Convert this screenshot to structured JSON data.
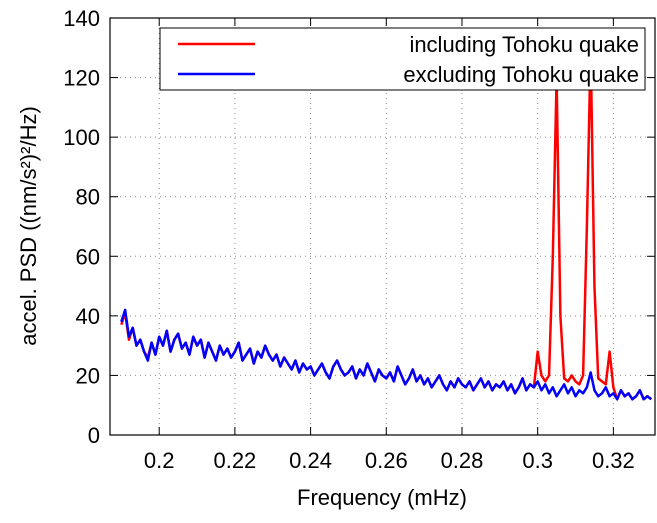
{
  "chart_data": {
    "type": "line",
    "xlabel": "Frequency (mHz)",
    "ylabel": "accel. PSD ((nm/s²)²/Hz)",
    "xlim": [
      0.187,
      0.331
    ],
    "ylim": [
      0,
      140
    ],
    "xticks": [
      0.2,
      0.22,
      0.24,
      0.26,
      0.28,
      0.3,
      0.32
    ],
    "yticks": [
      0,
      20,
      40,
      60,
      80,
      100,
      120,
      140
    ],
    "grid": true,
    "legend": "upper right",
    "x": [
      0.19,
      0.191,
      0.192,
      0.193,
      0.194,
      0.195,
      0.196,
      0.197,
      0.198,
      0.199,
      0.2,
      0.201,
      0.202,
      0.203,
      0.204,
      0.205,
      0.206,
      0.207,
      0.208,
      0.209,
      0.21,
      0.211,
      0.212,
      0.213,
      0.214,
      0.215,
      0.216,
      0.217,
      0.218,
      0.219,
      0.22,
      0.221,
      0.222,
      0.223,
      0.224,
      0.225,
      0.226,
      0.227,
      0.228,
      0.229,
      0.23,
      0.231,
      0.232,
      0.233,
      0.234,
      0.235,
      0.236,
      0.237,
      0.238,
      0.239,
      0.24,
      0.241,
      0.242,
      0.243,
      0.244,
      0.245,
      0.246,
      0.247,
      0.248,
      0.249,
      0.25,
      0.251,
      0.252,
      0.253,
      0.254,
      0.255,
      0.256,
      0.257,
      0.258,
      0.259,
      0.26,
      0.261,
      0.262,
      0.263,
      0.264,
      0.265,
      0.266,
      0.267,
      0.268,
      0.269,
      0.27,
      0.271,
      0.272,
      0.273,
      0.274,
      0.275,
      0.276,
      0.277,
      0.278,
      0.279,
      0.28,
      0.281,
      0.282,
      0.283,
      0.284,
      0.285,
      0.286,
      0.287,
      0.288,
      0.289,
      0.29,
      0.291,
      0.292,
      0.293,
      0.294,
      0.295,
      0.296,
      0.297,
      0.298,
      0.299,
      0.3,
      0.301,
      0.302,
      0.303,
      0.304,
      0.305,
      0.306,
      0.307,
      0.308,
      0.309,
      0.31,
      0.311,
      0.312,
      0.313,
      0.314,
      0.315,
      0.316,
      0.317,
      0.318,
      0.319,
      0.32,
      0.321,
      0.322,
      0.323,
      0.324,
      0.325,
      0.326,
      0.327,
      0.328,
      0.329,
      0.33
    ],
    "series": [
      {
        "name": "including Tohoku quake",
        "color": "#ff0000",
        "values": [
          37,
          41,
          32,
          36,
          30,
          32,
          28,
          26,
          31,
          27,
          33,
          30,
          35,
          28,
          32,
          34,
          29,
          31,
          27,
          33,
          30,
          32,
          26,
          31,
          28,
          25,
          30,
          27,
          29,
          26,
          28,
          31,
          25,
          27,
          29,
          24,
          28,
          26,
          30,
          27,
          25,
          27,
          23,
          26,
          24,
          22,
          25,
          21,
          24,
          22,
          23,
          20,
          22,
          24,
          21,
          19,
          23,
          25,
          22,
          20,
          21,
          23,
          19,
          22,
          20,
          24,
          21,
          18,
          22,
          20,
          19,
          21,
          18,
          23,
          20,
          17,
          19,
          22,
          18,
          20,
          17,
          19,
          16,
          18,
          20,
          17,
          15,
          18,
          16,
          19,
          17,
          16,
          18,
          15,
          17,
          19,
          16,
          18,
          15,
          17,
          16,
          18,
          15,
          17,
          14,
          16,
          19,
          15,
          17,
          16,
          28,
          20,
          18,
          20,
          60,
          120,
          40,
          19,
          18,
          20,
          18,
          17,
          20,
          70,
          130,
          50,
          19,
          18,
          17,
          28,
          16,
          12,
          15,
          13,
          14,
          12,
          13,
          15,
          12,
          13,
          12
        ]
      },
      {
        "name": "excluding Tohoku quake",
        "color": "#0000ff",
        "values": [
          38,
          42,
          33,
          36,
          30,
          32,
          28,
          25,
          31,
          27,
          33,
          30,
          35,
          28,
          32,
          34,
          29,
          31,
          27,
          33,
          30,
          32,
          26,
          31,
          28,
          25,
          30,
          27,
          29,
          26,
          28,
          31,
          25,
          27,
          29,
          24,
          28,
          26,
          30,
          27,
          25,
          27,
          23,
          26,
          24,
          22,
          25,
          21,
          24,
          22,
          23,
          20,
          22,
          24,
          21,
          19,
          23,
          25,
          22,
          20,
          21,
          23,
          19,
          22,
          20,
          24,
          21,
          18,
          22,
          20,
          19,
          21,
          18,
          23,
          20,
          17,
          19,
          22,
          18,
          20,
          17,
          19,
          16,
          18,
          20,
          17,
          15,
          18,
          16,
          19,
          17,
          16,
          18,
          15,
          17,
          19,
          16,
          18,
          15,
          17,
          16,
          18,
          15,
          17,
          14,
          16,
          19,
          15,
          17,
          16,
          18,
          15,
          17,
          14,
          16,
          13,
          15,
          17,
          14,
          16,
          13,
          15,
          14,
          16,
          21,
          15,
          13,
          14,
          16,
          13,
          14,
          12,
          15,
          13,
          14,
          12,
          13,
          15,
          12,
          13,
          12
        ]
      }
    ]
  }
}
